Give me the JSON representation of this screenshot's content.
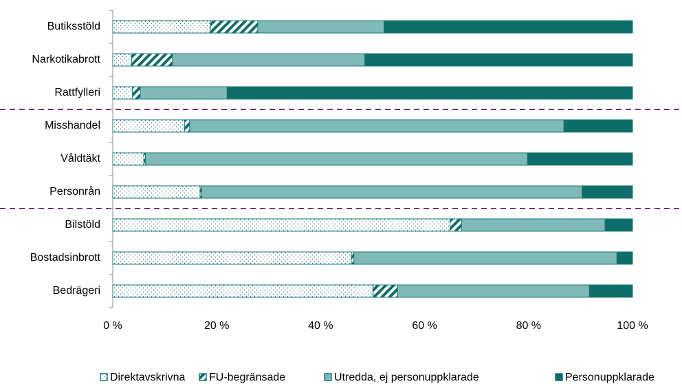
{
  "chart_data": {
    "type": "stacked_bar_horizontal",
    "categories": [
      "Butiksstöld",
      "Narkotikabrott",
      "Rattfylleri",
      "Misshandel",
      "Våldtäkt",
      "Personrån",
      "Bilstöld",
      "Bostadsinbrott",
      "Bedrägeri"
    ],
    "series": [
      {
        "name": "Direktavskrivna",
        "color": "#ffffff",
        "pattern": "dots",
        "values": [
          18.8,
          3.6,
          3.8,
          13.8,
          6.0,
          16.8,
          64.9,
          45.9,
          50.1
        ]
      },
      {
        "name": "FU-begränsade",
        "color": "#ffffff",
        "pattern": "hatch",
        "values": [
          9.1,
          7.9,
          1.5,
          1.0,
          0.3,
          0.3,
          2.2,
          0.5,
          4.7
        ]
      },
      {
        "name": "Utredda, ej personuppklarade",
        "color": "#80bab8",
        "values": [
          24.3,
          37.0,
          16.7,
          72.0,
          73.5,
          73.2,
          27.6,
          50.6,
          36.9
        ]
      },
      {
        "name": "Personuppklarade",
        "color": "#0f6d69",
        "values": [
          47.8,
          51.5,
          78.0,
          13.2,
          20.2,
          9.7,
          5.3,
          3.0,
          8.3
        ]
      }
    ],
    "xlim": [
      0,
      100
    ],
    "xticks": [
      {
        "value": 0,
        "label": "0 %"
      },
      {
        "value": 20,
        "label": "20 %"
      },
      {
        "value": 40,
        "label": "40 %"
      },
      {
        "value": 60,
        "label": "60 %"
      },
      {
        "value": 80,
        "label": "80 %"
      },
      {
        "value": 100,
        "label": "100 %"
      }
    ],
    "legend": "bottom"
  }
}
